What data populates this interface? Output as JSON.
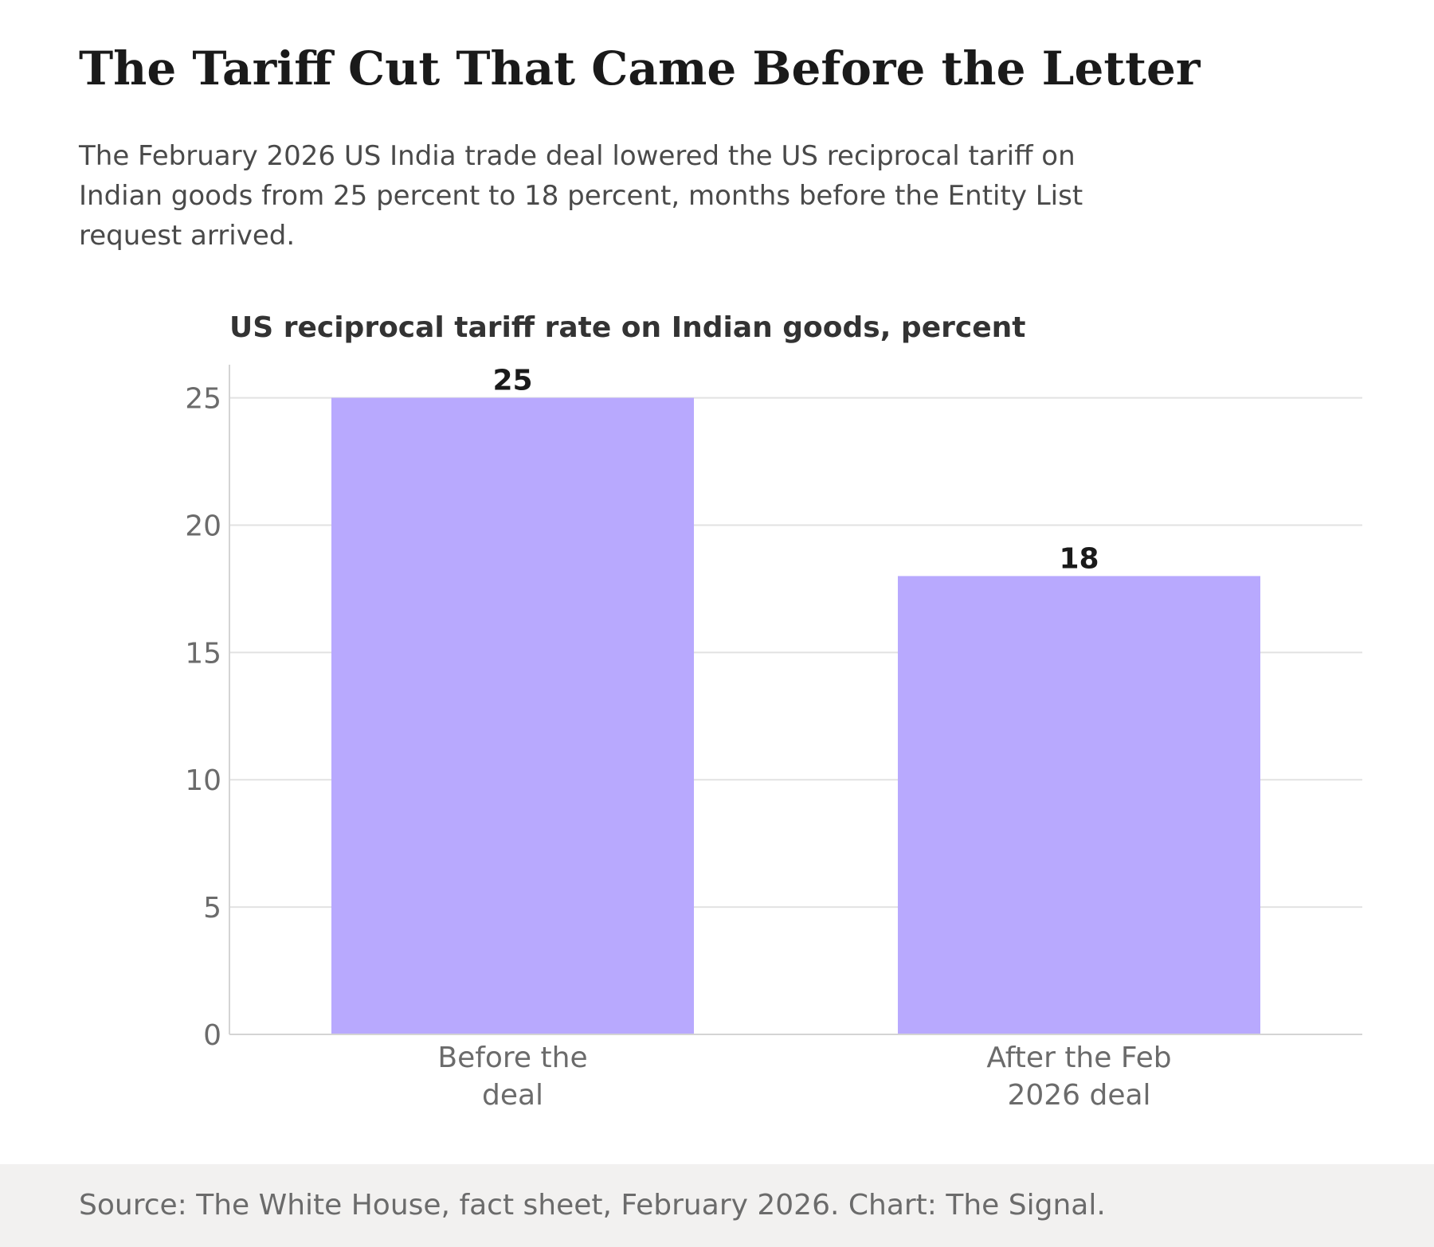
{
  "headline": "The Tariff Cut That Came Before the Letter",
  "dek": "The February 2026 US India trade deal lowered the US reciprocal tariff on Indian goods from 25 percent to 18 percent, months before the Entity List request arrived.",
  "source": "Source: The White House, fact sheet, February 2026. Chart: The Signal.",
  "colors": {
    "bar": "#b8a9fe",
    "grid": "#e2e2e2",
    "axis": "#d4d4d4",
    "tick_text": "#6b6b6b",
    "value_text": "#1a1a1a",
    "chart_title": "#333333",
    "footer_bg": "#f2f1f0"
  },
  "chart_data": {
    "type": "bar",
    "title": "US reciprocal tariff rate on Indian goods, percent",
    "categories": [
      [
        "Before the",
        "deal"
      ],
      [
        "After the Feb",
        "2026 deal"
      ]
    ],
    "values": [
      25,
      18
    ],
    "value_labels": [
      "25",
      "18"
    ],
    "yticks": [
      0,
      5,
      10,
      15,
      20,
      25
    ],
    "ylim": [
      0,
      26.3
    ],
    "xlabel": "",
    "ylabel": "",
    "grid": true,
    "legend": "none"
  }
}
